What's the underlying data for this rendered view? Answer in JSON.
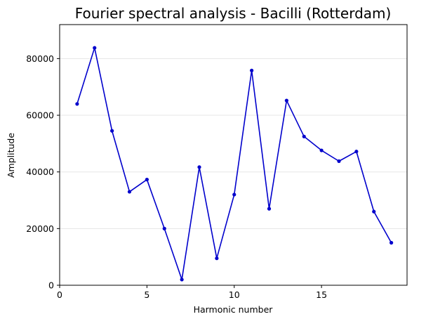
{
  "chart_data": {
    "type": "line",
    "title": "Fourier spectral analysis - Bacilli (Rotterdam)",
    "xlabel": "Harmonic number",
    "ylabel": "Amplitude",
    "xlim": [
      0,
      19.9
    ],
    "ylim": [
      0,
      92000
    ],
    "xticks": [
      0,
      5,
      10,
      15
    ],
    "yticks": [
      0,
      20000,
      40000,
      60000,
      80000
    ],
    "grid": {
      "axis": "y",
      "visible": true
    },
    "series": [
      {
        "color": "#0000cc",
        "marker": "dot",
        "x": [
          1,
          2,
          3,
          4,
          5,
          6,
          7,
          8,
          9,
          10,
          11,
          12,
          13,
          14,
          15,
          16,
          17,
          18,
          19
        ],
        "y": [
          64000,
          83800,
          54500,
          33000,
          37300,
          20000,
          2000,
          41700,
          9500,
          32000,
          75800,
          27000,
          65200,
          52500,
          47600,
          43800,
          47200,
          26000,
          15000
        ]
      }
    ]
  },
  "colors": {
    "line": "#0000cc",
    "grid": "#e5e5e5",
    "axes": "#000000",
    "background": "#ffffff"
  }
}
